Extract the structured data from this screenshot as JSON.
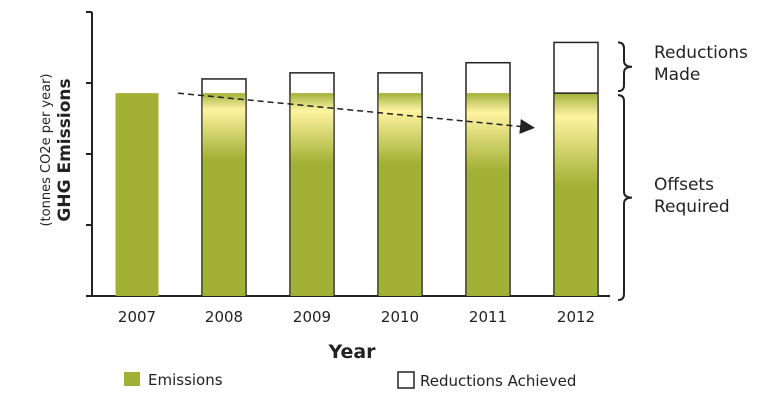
{
  "chart_data": {
    "type": "bar",
    "categories": [
      "2007",
      "2008",
      "2009",
      "2010",
      "2011",
      "2012"
    ],
    "series": [
      {
        "name": "Emissions",
        "values": [
          100,
          100,
          100,
          100,
          100,
          100
        ]
      },
      {
        "name": "Reductions Achieved",
        "values": [
          0,
          7,
          10,
          10,
          15,
          25
        ]
      }
    ],
    "total": [
      100,
      107,
      110,
      110,
      115,
      125
    ],
    "xlabel": "Year",
    "ylabel": "GHG Emissions",
    "ylabel_sub": "(tonnes CO2e per year)",
    "ylim": [
      0,
      140
    ],
    "annotations": [
      {
        "text_lines": [
          "Reductions",
          "Made"
        ]
      },
      {
        "text_lines": [
          "Offsets",
          "Required"
        ]
      }
    ],
    "legend": {
      "emissions_label": "Emissions",
      "reductions_label": "Reductions Achieved",
      "placement": "bottom"
    },
    "colors": {
      "emission_dark": "#a2b136",
      "emission_light": "#fff6b8",
      "bar_outline": "#222222"
    },
    "grid": false
  }
}
